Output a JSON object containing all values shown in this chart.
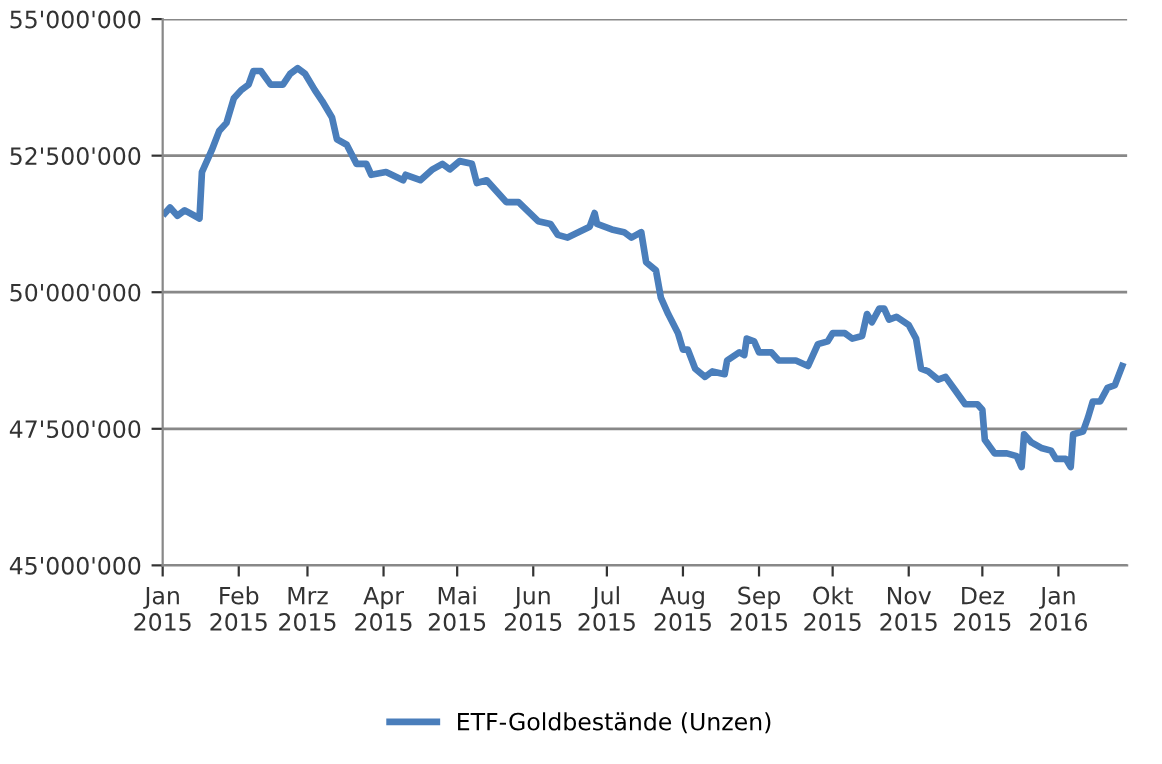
{
  "chart_data": {
    "type": "line",
    "x": [
      "2015-01-02",
      "2015-01-04",
      "2015-01-07",
      "2015-01-10",
      "2015-01-14",
      "2015-01-16",
      "2015-01-17",
      "2015-01-21",
      "2015-01-24",
      "2015-01-27",
      "2015-01-30",
      "2015-02-02",
      "2015-02-05",
      "2015-02-07",
      "2015-02-10",
      "2015-02-14",
      "2015-02-19",
      "2015-02-22",
      "2015-02-25",
      "2015-02-28",
      "2015-03-04",
      "2015-03-07",
      "2015-03-11",
      "2015-03-13",
      "2015-03-17",
      "2015-03-21",
      "2015-03-25",
      "2015-03-27",
      "2015-04-02",
      "2015-04-09",
      "2015-04-10",
      "2015-04-16",
      "2015-04-21",
      "2015-04-25",
      "2015-04-28",
      "2015-05-02",
      "2015-05-07",
      "2015-05-09",
      "2015-05-13",
      "2015-05-21",
      "2015-05-26",
      "2015-06-03",
      "2015-06-08",
      "2015-06-11",
      "2015-06-15",
      "2015-06-24",
      "2015-06-26",
      "2015-06-27",
      "2015-07-03",
      "2015-07-08",
      "2015-07-11",
      "2015-07-15",
      "2015-07-17",
      "2015-07-21",
      "2015-07-23",
      "2015-07-26",
      "2015-07-30",
      "2015-08-01",
      "2015-08-03",
      "2015-08-06",
      "2015-08-10",
      "2015-08-13",
      "2015-08-18",
      "2015-08-19",
      "2015-08-24",
      "2015-08-26",
      "2015-08-27",
      "2015-08-30",
      "2015-09-01",
      "2015-09-06",
      "2015-09-09",
      "2015-09-16",
      "2015-09-21",
      "2015-09-25",
      "2015-09-29",
      "2015-10-01",
      "2015-10-06",
      "2015-10-09",
      "2015-10-13",
      "2015-10-15",
      "2015-10-17",
      "2015-10-20",
      "2015-10-22",
      "2015-10-24",
      "2015-10-27",
      "2015-11-01",
      "2015-11-04",
      "2015-11-06",
      "2015-11-09",
      "2015-11-13",
      "2015-11-16",
      "2015-11-20",
      "2015-11-24",
      "2015-11-29",
      "2015-12-01",
      "2015-12-02",
      "2015-12-06",
      "2015-12-11",
      "2015-12-15",
      "2015-12-17",
      "2015-12-18",
      "2015-12-21",
      "2015-12-25",
      "2015-12-29",
      "2015-12-31",
      "2016-01-04",
      "2016-01-06",
      "2016-01-07",
      "2016-01-11",
      "2016-01-13",
      "2016-01-15",
      "2016-01-18",
      "2016-01-21",
      "2016-01-24",
      "2016-01-27"
    ],
    "series": [
      {
        "name": "ETF-Goldbestände (Unzen)",
        "color": "#4a7ebb",
        "values": [
          51450000,
          51550000,
          51400000,
          51500000,
          51400000,
          51350000,
          52200000,
          52600000,
          52950000,
          53100000,
          53550000,
          53700000,
          53800000,
          54050000,
          54050000,
          53800000,
          53800000,
          54000000,
          54100000,
          54000000,
          53700000,
          53500000,
          53200000,
          52800000,
          52700000,
          52350000,
          52350000,
          52150000,
          52200000,
          52050000,
          52150000,
          52050000,
          52250000,
          52350000,
          52250000,
          52400000,
          52350000,
          52000000,
          52050000,
          51650000,
          51650000,
          51300000,
          51250000,
          51050000,
          51000000,
          51200000,
          51450000,
          51250000,
          51150000,
          51100000,
          51000000,
          51100000,
          50550000,
          50400000,
          49900000,
          49600000,
          49250000,
          48950000,
          48950000,
          48600000,
          48450000,
          48550000,
          48500000,
          48750000,
          48900000,
          48850000,
          49150000,
          49100000,
          48900000,
          48900000,
          48750000,
          48750000,
          48650000,
          49050000,
          49100000,
          49250000,
          49250000,
          49150000,
          49200000,
          49600000,
          49450000,
          49700000,
          49700000,
          49500000,
          49550000,
          49400000,
          49150000,
          48600000,
          48550000,
          48400000,
          48450000,
          48200000,
          47950000,
          47950000,
          47850000,
          47300000,
          47050000,
          47050000,
          47000000,
          46800000,
          47400000,
          47250000,
          47150000,
          47100000,
          46950000,
          46950000,
          46800000,
          47400000,
          47450000,
          47700000,
          48000000,
          48000000,
          48250000,
          48300000,
          48650000
        ]
      }
    ],
    "xlim": [
      "2015-01-01",
      "2016-01-29"
    ],
    "xticks": [
      {
        "value": "2015-01-01",
        "label": "Jan\n2015"
      },
      {
        "value": "2015-02-01",
        "label": "Feb\n2015"
      },
      {
        "value": "2015-03-01",
        "label": "Mrz\n2015"
      },
      {
        "value": "2015-04-01",
        "label": "Apr\n2015"
      },
      {
        "value": "2015-05-01",
        "label": "Mai\n2015"
      },
      {
        "value": "2015-06-01",
        "label": "Jun\n2015"
      },
      {
        "value": "2015-07-01",
        "label": "Jul\n2015"
      },
      {
        "value": "2015-08-01",
        "label": "Aug\n2015"
      },
      {
        "value": "2015-09-01",
        "label": "Sep\n2015"
      },
      {
        "value": "2015-10-01",
        "label": "Okt\n2015"
      },
      {
        "value": "2015-11-01",
        "label": "Nov\n2015"
      },
      {
        "value": "2015-12-01",
        "label": "Dez\n2015"
      },
      {
        "value": "2016-01-01",
        "label": "Jan\n2016"
      }
    ],
    "ylim": [
      45000000,
      55000000
    ],
    "yticks": [
      {
        "value": 45000000,
        "label": "45'000'000"
      },
      {
        "value": 47500000,
        "label": "47'500'000"
      },
      {
        "value": 50000000,
        "label": "50'000'000"
      },
      {
        "value": 52500000,
        "label": "52'500'000"
      },
      {
        "value": 55000000,
        "label": "55'000'000"
      }
    ],
    "grid": "y",
    "legend": "bottom",
    "marker": "none",
    "line_style": "solid"
  }
}
